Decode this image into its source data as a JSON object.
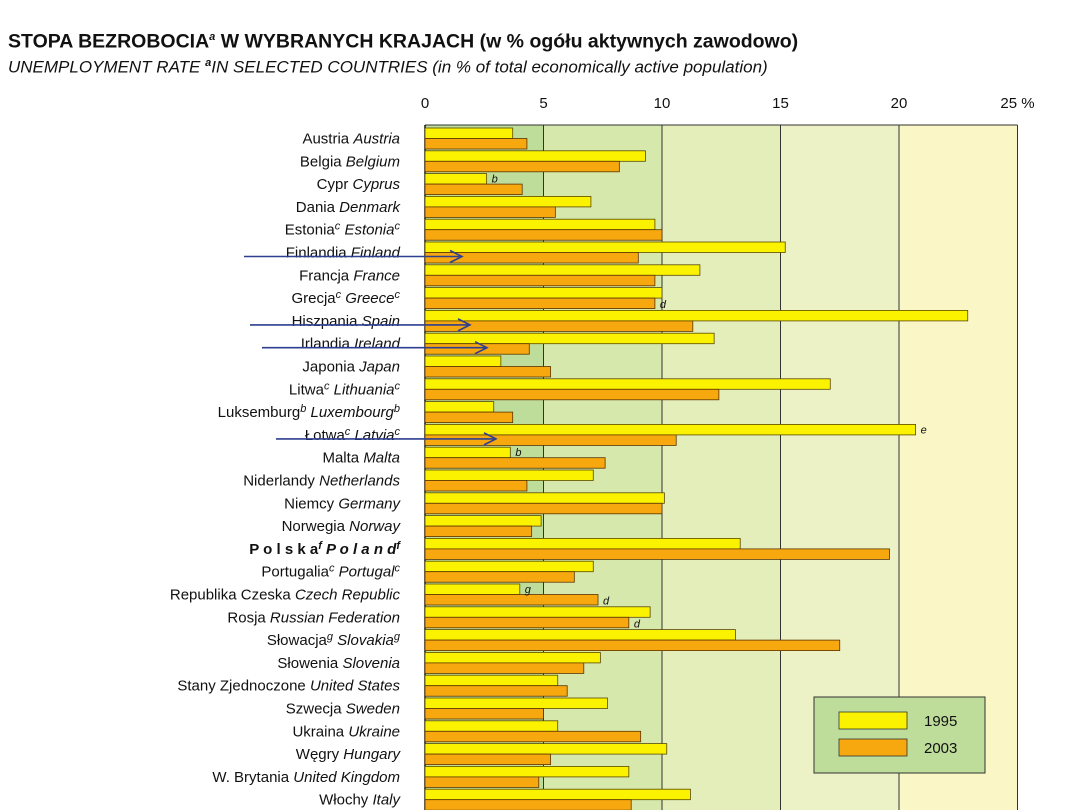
{
  "title": {
    "pl_main": "STOPA BEZROBOCIA",
    "pl_sup": "a",
    "pl_rest": " W WYBRANYCH KRAJACH (w % ogółu aktywnych zawodowo)",
    "en_main": "UNEMPLOYMENT RATE ",
    "en_sup": "a",
    "en_rest": "IN SELECTED COUNTRIES (in % of total economically active population)"
  },
  "chart_data": {
    "type": "bar",
    "orientation": "horizontal",
    "xlim": [
      0,
      25
    ],
    "x_ticks": [
      "0",
      "5",
      "10",
      "15",
      "20",
      "25 %"
    ],
    "x_tick_values": [
      0,
      5,
      10,
      15,
      20,
      25
    ],
    "grid": "vertical",
    "legend_position": "bottom-right",
    "series": [
      {
        "name": "1995",
        "color": "#fbf200"
      },
      {
        "name": "2003",
        "color": "#f7a80f"
      }
    ],
    "colors": {
      "band1": "#bfdd9a",
      "band2": "#d6e8ab",
      "band3": "#e4eebb",
      "band4": "#ecf2c6",
      "band5": "#fbf6c6",
      "arrow": "#2e3f8f"
    },
    "categories": [
      {
        "pl": "Austria",
        "pl_sup": "",
        "en": "Austria",
        "en_sup": "",
        "v1995": 3.7,
        "v2003": 4.3,
        "n1995": "",
        "n2003": ""
      },
      {
        "pl": "Belgia",
        "pl_sup": "",
        "en": "Belgium",
        "en_sup": "",
        "v1995": 9.3,
        "v2003": 8.2,
        "n1995": "",
        "n2003": ""
      },
      {
        "pl": "Cypr",
        "pl_sup": "",
        "en": "Cyprus",
        "en_sup": "",
        "v1995": 2.6,
        "v2003": 4.1,
        "n1995": "b",
        "n2003": ""
      },
      {
        "pl": "Dania",
        "pl_sup": "",
        "en": "Denmark",
        "en_sup": "",
        "v1995": 7.0,
        "v2003": 5.5,
        "n1995": "",
        "n2003": ""
      },
      {
        "pl": "Estonia",
        "pl_sup": "c",
        "en": "Estonia",
        "en_sup": "c",
        "v1995": 9.7,
        "v2003": 10.0,
        "n1995": "",
        "n2003": ""
      },
      {
        "pl": "Finlandia",
        "pl_sup": "",
        "en": "Finland",
        "en_sup": "",
        "v1995": 15.2,
        "v2003": 9.0,
        "n1995": "",
        "n2003": ""
      },
      {
        "pl": "Francja",
        "pl_sup": "",
        "en": "France",
        "en_sup": "",
        "v1995": 11.6,
        "v2003": 9.7,
        "n1995": "",
        "n2003": ""
      },
      {
        "pl": "Grecja",
        "pl_sup": "c",
        "en": "Greece",
        "en_sup": "c",
        "v1995": 10.0,
        "v2003": 9.7,
        "n1995": "",
        "n2003": "d"
      },
      {
        "pl": "Hiszpania",
        "pl_sup": "",
        "en": "Spain",
        "en_sup": "",
        "v1995": 22.9,
        "v2003": 11.3,
        "n1995": "",
        "n2003": ""
      },
      {
        "pl": "Irlandia",
        "pl_sup": "",
        "en": "Ireland",
        "en_sup": "",
        "v1995": 12.2,
        "v2003": 4.4,
        "n1995": "",
        "n2003": ""
      },
      {
        "pl": "Japonia",
        "pl_sup": "",
        "en": "Japan",
        "en_sup": "",
        "v1995": 3.2,
        "v2003": 5.3,
        "n1995": "",
        "n2003": ""
      },
      {
        "pl": "Litwa",
        "pl_sup": "c",
        "en": "Lithuania",
        "en_sup": "c",
        "v1995": 17.1,
        "v2003": 12.4,
        "n1995": "",
        "n2003": ""
      },
      {
        "pl": "Luksemburg",
        "pl_sup": "b",
        "en": "Luxembourg",
        "en_sup": "b",
        "v1995": 2.9,
        "v2003": 3.7,
        "n1995": "",
        "n2003": ""
      },
      {
        "pl": "Łotwa",
        "pl_sup": "c",
        "en": "Latvia",
        "en_sup": "c",
        "v1995": 20.7,
        "v2003": 10.6,
        "n1995": "e",
        "n2003": ""
      },
      {
        "pl": "Malta",
        "pl_sup": "",
        "en": "Malta",
        "en_sup": "",
        "v1995": 3.6,
        "v2003": 7.6,
        "n1995": "b",
        "n2003": ""
      },
      {
        "pl": "Niderlandy",
        "pl_sup": "",
        "en": "Netherlands",
        "en_sup": "",
        "v1995": 7.1,
        "v2003": 4.3,
        "n1995": "",
        "n2003": ""
      },
      {
        "pl": "Niemcy",
        "pl_sup": "",
        "en": "Germany",
        "en_sup": "",
        "v1995": 10.1,
        "v2003": 10.0,
        "n1995": "",
        "n2003": ""
      },
      {
        "pl": "Norwegia",
        "pl_sup": "",
        "en": "Norway",
        "en_sup": "",
        "v1995": 4.9,
        "v2003": 4.5,
        "n1995": "",
        "n2003": ""
      },
      {
        "pl": "P o l s k a",
        "pl_sup": "f",
        "en": "P o l a n d",
        "en_sup": "f",
        "v1995": 13.3,
        "v2003": 19.6,
        "n1995": "",
        "n2003": "",
        "emphasis": true
      },
      {
        "pl": "Portugalia",
        "pl_sup": "c",
        "en": "Portugal",
        "en_sup": "c",
        "v1995": 7.1,
        "v2003": 6.3,
        "n1995": "",
        "n2003": ""
      },
      {
        "pl": "Republika Czeska",
        "pl_sup": "",
        "en": "Czech Republic",
        "en_sup": "",
        "v1995": 4.0,
        "v2003": 7.3,
        "n1995": "g",
        "n2003": "d"
      },
      {
        "pl": "Rosja",
        "pl_sup": "",
        "en": "Russian Federation",
        "en_sup": "",
        "v1995": 9.5,
        "v2003": 8.6,
        "n1995": "",
        "n2003": "d"
      },
      {
        "pl": "Słowacja",
        "pl_sup": "g",
        "en": "Slovakia",
        "en_sup": "g",
        "v1995": 13.1,
        "v2003": 17.5,
        "n1995": "",
        "n2003": ""
      },
      {
        "pl": "Słowenia",
        "pl_sup": "",
        "en": "Slovenia",
        "en_sup": "",
        "v1995": 7.4,
        "v2003": 6.7,
        "n1995": "",
        "n2003": ""
      },
      {
        "pl": "Stany Zjednoczone",
        "pl_sup": "",
        "en": "United States",
        "en_sup": "",
        "v1995": 5.6,
        "v2003": 6.0,
        "n1995": "",
        "n2003": ""
      },
      {
        "pl": "Szwecja",
        "pl_sup": "",
        "en": "Sweden",
        "en_sup": "",
        "v1995": 7.7,
        "v2003": 5.0,
        "n1995": "",
        "n2003": ""
      },
      {
        "pl": "Ukraina",
        "pl_sup": "",
        "en": "Ukraine",
        "en_sup": "",
        "v1995": 5.6,
        "v2003": 9.1,
        "n1995": "",
        "n2003": ""
      },
      {
        "pl": "Węgry",
        "pl_sup": "",
        "en": "Hungary",
        "en_sup": "",
        "v1995": 10.2,
        "v2003": 5.3,
        "n1995": "",
        "n2003": ""
      },
      {
        "pl": "W. Brytania",
        "pl_sup": "",
        "en": "United Kingdom",
        "en_sup": "",
        "v1995": 8.6,
        "v2003": 4.8,
        "n1995": "",
        "n2003": ""
      },
      {
        "pl": "Włochy",
        "pl_sup": "",
        "en": "Italy",
        "en_sup": "",
        "v1995": 11.2,
        "v2003": 8.7,
        "n1995": "",
        "n2003": ""
      }
    ],
    "annotations": {
      "arrows_at_rows": [
        "Finlandia",
        "Hiszpania",
        "Irlandia",
        "Łotwa"
      ]
    }
  }
}
